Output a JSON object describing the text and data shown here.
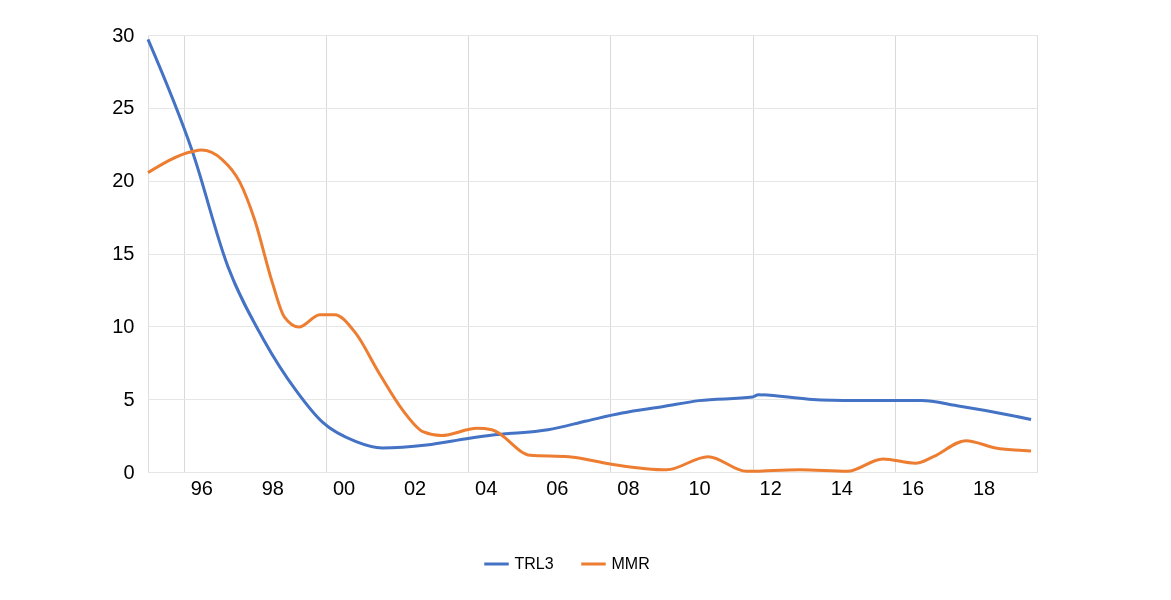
{
  "chart_data": {
    "type": "line",
    "xlim": [
      "1995-01",
      "2020-01"
    ],
    "ylim": [
      0,
      30
    ],
    "yticks": [
      0,
      5,
      10,
      15,
      20,
      25,
      30
    ],
    "xticks": [
      {
        "value": "1996-01",
        "label": null
      },
      {
        "value": "2000-01",
        "label": null
      },
      {
        "value": "2004-01",
        "label": null
      },
      {
        "value": "2008-01",
        "label": null
      },
      {
        "value": "2012-01",
        "label": null
      },
      {
        "value": "2016-01",
        "label": null
      },
      {
        "value": "1996-07",
        "label": "96"
      },
      {
        "value": "1998-07",
        "label": "98"
      },
      {
        "value": "2000-07",
        "label": "00"
      },
      {
        "value": "2002-07",
        "label": "02"
      },
      {
        "value": "2004-07",
        "label": "04"
      },
      {
        "value": "2006-07",
        "label": "06"
      },
      {
        "value": "2008-07",
        "label": "08"
      },
      {
        "value": "2010-07",
        "label": "10"
      },
      {
        "value": "2012-07",
        "label": "12"
      },
      {
        "value": "2014-07",
        "label": "14"
      },
      {
        "value": "2016-07",
        "label": "16"
      },
      {
        "value": "2018-07",
        "label": "18"
      }
    ],
    "grid": true,
    "legend": "bottom",
    "marker": "none",
    "line_style": "solid",
    "series": [
      {
        "name": "TRL3",
        "color": "#4472c4",
        "x": [
          "1995-01",
          "1996-04",
          "1997-04",
          "1998-04",
          "1999-03",
          "1999-12",
          "2000-11",
          "2001-08",
          "2002-11",
          "2004-01",
          "2004-10",
          "2006-04",
          "2007-05",
          "2008-05",
          "2009-07",
          "2010-07",
          "2012-01",
          "2012-03",
          "2013-08",
          "2014-11",
          "2016-10",
          "2017-10",
          "2019-04",
          "2019-11"
        ],
        "values": [
          29.7,
          22.0,
          14.1,
          9.1,
          5.6,
          3.4,
          2.1,
          1.65,
          1.85,
          2.3,
          2.55,
          2.9,
          3.5,
          4.05,
          4.5,
          4.9,
          5.15,
          5.3,
          5.0,
          4.9,
          4.9,
          4.55,
          3.9,
          3.6
        ]
      },
      {
        "name": "MMR",
        "color": "#ed7d31",
        "x": [
          "1995-01",
          "1996-04",
          "1996-07",
          "1997-02",
          "1997-08",
          "1998-01",
          "1998-07",
          "1998-11",
          "1999-04",
          "1999-11",
          "2000-04",
          "2000-11",
          "2001-07",
          "2002-03",
          "2002-10",
          "2003-04",
          "2004-04",
          "2004-09",
          "2005-10",
          "2006-11",
          "2008-01",
          "2009-08",
          "2010-10",
          "2011-11",
          "2013-05",
          "2014-09",
          "2015-09",
          "2016-08",
          "2017-02",
          "2018-01",
          "2018-11",
          "2019-11"
        ],
        "values": [
          20.55,
          22.0,
          22.1,
          21.45,
          19.9,
          17.3,
          13.0,
          10.65,
          9.95,
          10.8,
          10.8,
          9.55,
          6.8,
          4.25,
          2.75,
          2.5,
          3.0,
          2.9,
          1.15,
          1.05,
          0.55,
          0.15,
          1.05,
          0.05,
          0.15,
          0.05,
          0.9,
          0.6,
          1.05,
          2.15,
          1.65,
          1.45
        ]
      }
    ]
  }
}
